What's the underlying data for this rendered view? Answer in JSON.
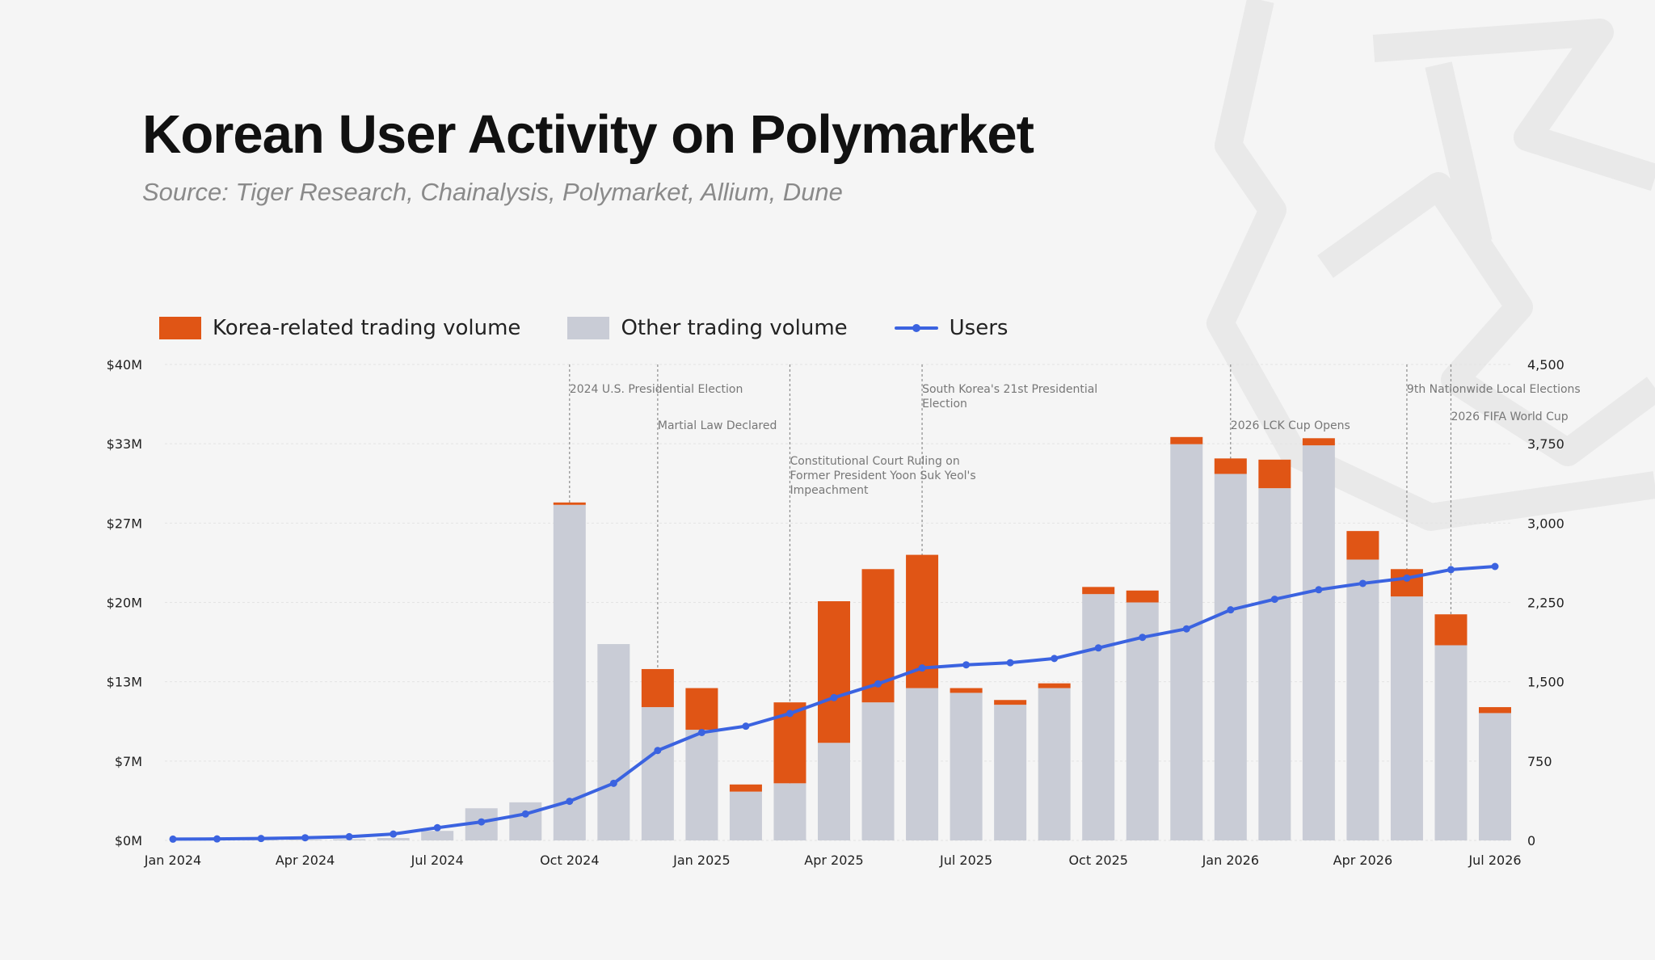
{
  "title": "Korean User Activity on Polymarket",
  "subtitle": "Source: Tiger Research, Chainalysis, Polymarket, Allium, Dune",
  "colors": {
    "korea": "#e05515",
    "other": "#c9ccd6",
    "users": "#3b63e0",
    "background": "#f5f5f5"
  },
  "legend": [
    {
      "label": "Korea-related trading volume",
      "type": "swatch",
      "color": "#e05515"
    },
    {
      "label": "Other trading volume",
      "type": "swatch",
      "color": "#c9ccd6"
    },
    {
      "label": "Users",
      "type": "line",
      "color": "#3b63e0"
    }
  ],
  "chart_data": {
    "type": "bar",
    "stacked": true,
    "categories": [
      "Jan 2024",
      "Feb 2024",
      "Mar 2024",
      "Apr 2024",
      "May 2024",
      "Jun 2024",
      "Jul 2024",
      "Aug 2024",
      "Sep 2024",
      "Oct 2024",
      "Nov 2024",
      "Dec 2024",
      "Jan 2025",
      "Feb 2025",
      "Mar 2025",
      "Apr 2025",
      "May 2025",
      "Jun 2025",
      "Jul 2025",
      "Aug 2025",
      "Sep 2025",
      "Oct 2025",
      "Nov 2025",
      "Dec 2025",
      "Jan 2026",
      "Feb 2026",
      "Mar 2026",
      "Apr 2026",
      "May 2026",
      "Jun 2026",
      "Jul 2026"
    ],
    "series": [
      {
        "name": "Other trading volume",
        "axis": "left",
        "values": [
          0,
          0,
          0.05,
          0.05,
          0.1,
          0.2,
          0.8,
          2.7,
          3.2,
          28.2,
          16.5,
          11.2,
          9.3,
          4.1,
          4.8,
          8.2,
          11.6,
          12.8,
          12.4,
          11.4,
          12.8,
          20.7,
          20.0,
          33.3,
          30.8,
          29.6,
          33.2,
          23.6,
          20.5,
          16.4,
          10.7
        ],
        "color": "#c9ccd6"
      },
      {
        "name": "Korea-related trading volume",
        "axis": "left",
        "values": [
          0,
          0,
          0,
          0,
          0,
          0,
          0,
          0,
          0,
          0.2,
          0,
          3.2,
          3.5,
          0.6,
          6.8,
          11.9,
          11.2,
          11.2,
          0.4,
          0.4,
          0.4,
          0.6,
          1.0,
          0.6,
          1.3,
          2.4,
          0.6,
          2.4,
          2.3,
          2.6,
          0.5
        ],
        "color": "#e05515"
      },
      {
        "name": "Users",
        "type": "line",
        "axis": "right",
        "values": [
          12,
          14,
          18,
          25,
          35,
          60,
          120,
          175,
          250,
          370,
          540,
          850,
          1020,
          1080,
          1200,
          1350,
          1480,
          1630,
          1660,
          1680,
          1720,
          1820,
          1920,
          2000,
          2180,
          2280,
          2370,
          2430,
          2480,
          2560,
          2590
        ],
        "color": "#3b63e0"
      }
    ],
    "xticks": [
      "Jan 2024",
      "Apr 2024",
      "Jul 2024",
      "Oct 2024",
      "Jan 2025",
      "Apr 2025",
      "Jul 2025",
      "Oct 2025",
      "Jan 2026",
      "Apr 2026",
      "Jul 2026"
    ],
    "ylim": [
      0,
      40
    ],
    "y2lim": [
      0,
      4500
    ],
    "yticks": [
      "$0M",
      "$7M",
      "$13M",
      "$20M",
      "$27M",
      "$33M",
      "$40M"
    ],
    "y2ticks": [
      "0",
      "750",
      "1,500",
      "2,250",
      "3,000",
      "3,750",
      "4,500"
    ],
    "grid": true,
    "legend_position": "top-left",
    "annotations": [
      {
        "x": "Oct 2024",
        "lines": [
          "2024 U.S. Presidential Election"
        ]
      },
      {
        "x": "Dec 2024",
        "lines": [
          "Martial Law Declared"
        ]
      },
      {
        "x": "Mar 2025",
        "lines": [
          "Constitutional Court Ruling on",
          "Former President Yoon Suk Yeol's",
          "Impeachment"
        ]
      },
      {
        "x": "Jun 2025",
        "lines": [
          "South Korea's 21st Presidential",
          "Election"
        ]
      },
      {
        "x": "Jan 2026",
        "lines": [
          "2026 LCK Cup Opens"
        ]
      },
      {
        "x": "May 2026",
        "lines": [
          "9th Nationwide Local Elections"
        ]
      },
      {
        "x": "Jun 2026",
        "lines": [
          "2026 FIFA World Cup"
        ]
      }
    ]
  }
}
